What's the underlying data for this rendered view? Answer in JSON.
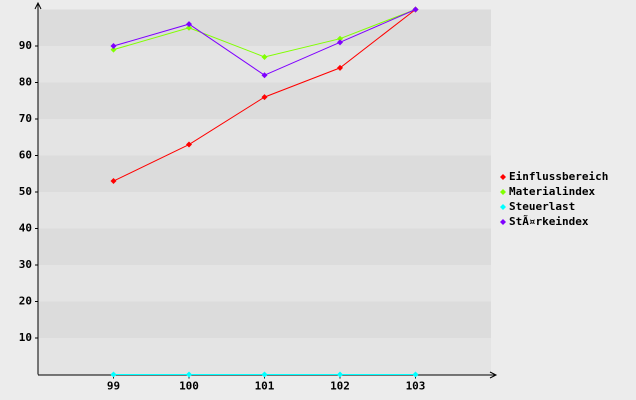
{
  "chart_data": {
    "type": "line",
    "x": [
      99,
      100,
      101,
      102,
      103
    ],
    "xlim": [
      98,
      104
    ],
    "xticks": [
      99,
      100,
      101,
      102,
      103
    ],
    "ylim": [
      0,
      100
    ],
    "yticks": [
      10,
      20,
      30,
      40,
      50,
      60,
      70,
      80,
      90
    ],
    "grid": true,
    "legend": "right",
    "series": [
      {
        "name": "Einflussbereich",
        "color": "#ff0000",
        "values": [
          53,
          63,
          76,
          84,
          100
        ]
      },
      {
        "name": "Materialindex",
        "color": "#80ff00",
        "values": [
          89,
          95,
          87,
          92,
          100
        ]
      },
      {
        "name": "Steuerlast",
        "color": "#00ffff",
        "values": [
          0,
          0,
          0,
          0,
          0
        ]
      },
      {
        "name": "StÃ¤rkeindex",
        "color": "#7f00ff",
        "values": [
          90,
          96,
          82,
          91,
          100
        ]
      }
    ]
  }
}
